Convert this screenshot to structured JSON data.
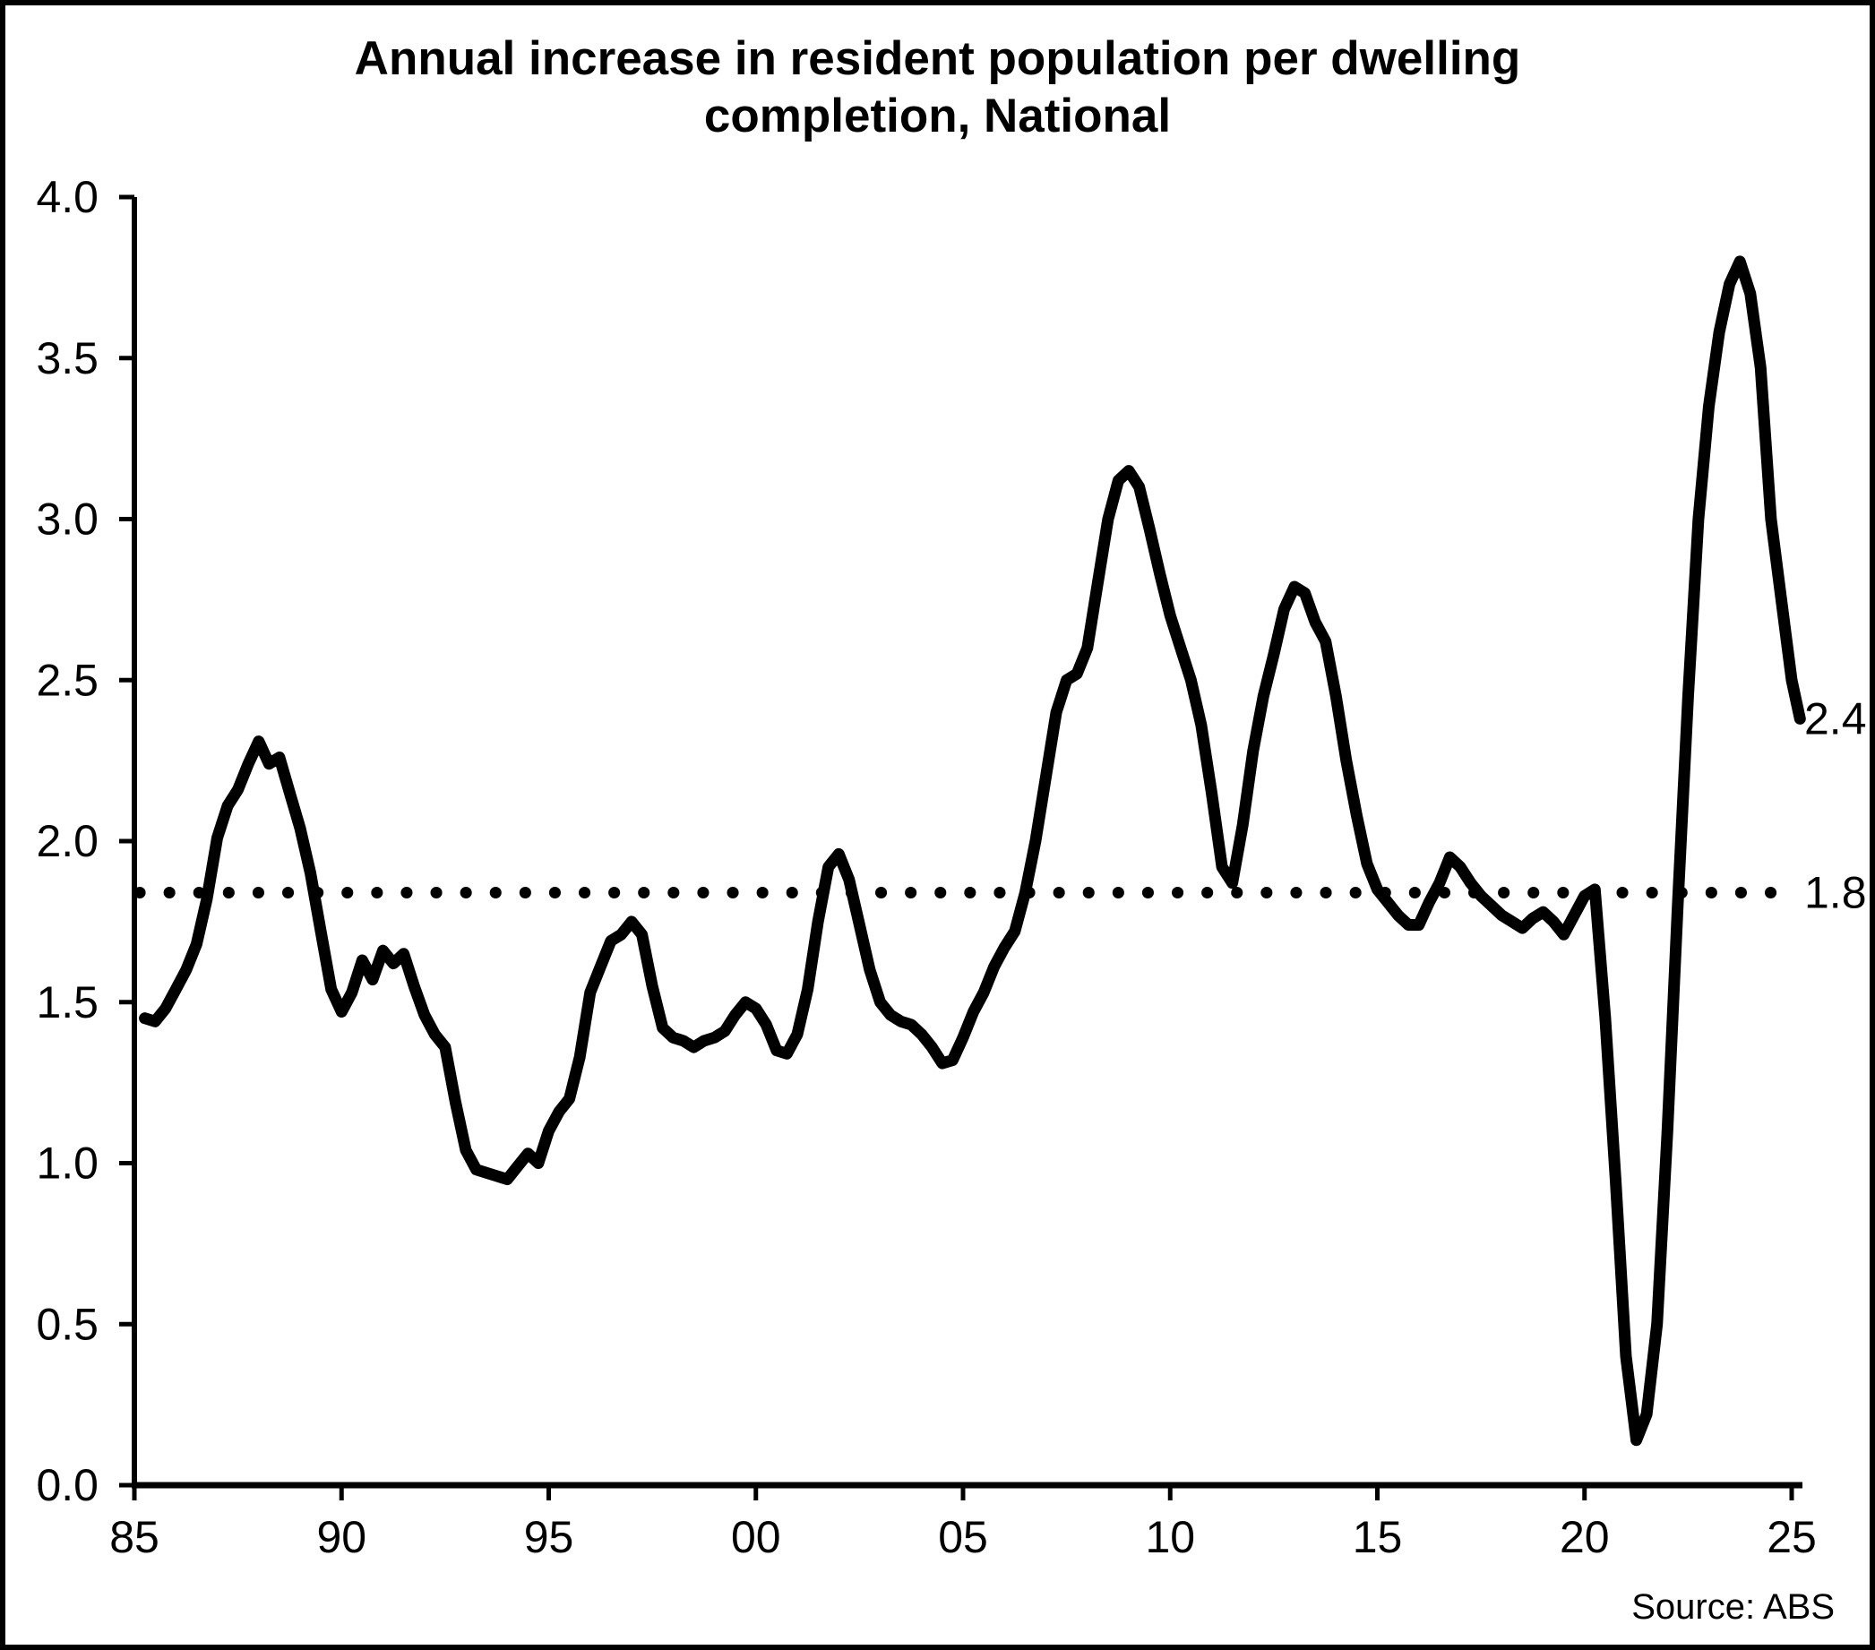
{
  "chart_data": {
    "type": "line",
    "title": "Annual increase in resident population per dwelling completion, National",
    "title_lines": [
      "Annual increase in resident population per dwelling",
      "completion, National"
    ],
    "source": "Source: ABS",
    "grid": false,
    "legend": false,
    "background": "#ffffff",
    "line_color": "#000000",
    "x_axis": {
      "range": [
        1985,
        2025.5
      ],
      "ticks": [
        {
          "label": "85",
          "year": 1985
        },
        {
          "label": "90",
          "year": 1990
        },
        {
          "label": "95",
          "year": 1995
        },
        {
          "label": "00",
          "year": 2000
        },
        {
          "label": "05",
          "year": 2005
        },
        {
          "label": "10",
          "year": 2010
        },
        {
          "label": "15",
          "year": 2015
        },
        {
          "label": "20",
          "year": 2020
        },
        {
          "label": "25",
          "year": 2025
        }
      ]
    },
    "y_axis": {
      "range": [
        0.0,
        4.0
      ],
      "ticks": [
        {
          "label": "0.0",
          "value": 0.0
        },
        {
          "label": "0.5",
          "value": 0.5
        },
        {
          "label": "1.0",
          "value": 1.0
        },
        {
          "label": "1.5",
          "value": 1.5
        },
        {
          "label": "2.0",
          "value": 2.0
        },
        {
          "label": "2.5",
          "value": 2.5
        },
        {
          "label": "3.0",
          "value": 3.0
        },
        {
          "label": "3.5",
          "value": 3.5
        },
        {
          "label": "4.0",
          "value": 4.0
        }
      ]
    },
    "reference_line": {
      "value": 1.84,
      "label": "1.8",
      "style": "dotted"
    },
    "series": {
      "name": "National",
      "end_label": "2.4",
      "points": [
        [
          1985.25,
          1.45
        ],
        [
          1985.5,
          1.44
        ],
        [
          1985.75,
          1.48
        ],
        [
          1986.0,
          1.54
        ],
        [
          1986.25,
          1.6
        ],
        [
          1986.5,
          1.68
        ],
        [
          1986.75,
          1.82
        ],
        [
          1987.0,
          2.01
        ],
        [
          1987.25,
          2.11
        ],
        [
          1987.5,
          2.16
        ],
        [
          1987.75,
          2.24
        ],
        [
          1988.0,
          2.31
        ],
        [
          1988.25,
          2.24
        ],
        [
          1988.5,
          2.26
        ],
        [
          1988.75,
          2.15
        ],
        [
          1989.0,
          2.04
        ],
        [
          1989.25,
          1.9
        ],
        [
          1989.5,
          1.72
        ],
        [
          1989.75,
          1.54
        ],
        [
          1990.0,
          1.47
        ],
        [
          1990.25,
          1.53
        ],
        [
          1990.5,
          1.63
        ],
        [
          1990.75,
          1.57
        ],
        [
          1991.0,
          1.66
        ],
        [
          1991.25,
          1.62
        ],
        [
          1991.5,
          1.65
        ],
        [
          1991.75,
          1.55
        ],
        [
          1992.0,
          1.46
        ],
        [
          1992.25,
          1.4
        ],
        [
          1992.5,
          1.36
        ],
        [
          1992.75,
          1.19
        ],
        [
          1993.0,
          1.04
        ],
        [
          1993.25,
          0.98
        ],
        [
          1993.5,
          0.97
        ],
        [
          1993.75,
          0.96
        ],
        [
          1994.0,
          0.95
        ],
        [
          1994.25,
          0.99
        ],
        [
          1994.5,
          1.03
        ],
        [
          1994.75,
          1.0
        ],
        [
          1995.0,
          1.1
        ],
        [
          1995.25,
          1.16
        ],
        [
          1995.5,
          1.2
        ],
        [
          1995.75,
          1.33
        ],
        [
          1996.0,
          1.53
        ],
        [
          1996.25,
          1.61
        ],
        [
          1996.5,
          1.69
        ],
        [
          1996.75,
          1.71
        ],
        [
          1997.0,
          1.75
        ],
        [
          1997.25,
          1.71
        ],
        [
          1997.5,
          1.55
        ],
        [
          1997.75,
          1.42
        ],
        [
          1998.0,
          1.39
        ],
        [
          1998.25,
          1.38
        ],
        [
          1998.5,
          1.36
        ],
        [
          1998.75,
          1.38
        ],
        [
          1999.0,
          1.39
        ],
        [
          1999.25,
          1.41
        ],
        [
          1999.5,
          1.46
        ],
        [
          1999.75,
          1.5
        ],
        [
          2000.0,
          1.48
        ],
        [
          2000.25,
          1.43
        ],
        [
          2000.5,
          1.35
        ],
        [
          2000.75,
          1.34
        ],
        [
          2001.0,
          1.4
        ],
        [
          2001.25,
          1.54
        ],
        [
          2001.5,
          1.75
        ],
        [
          2001.75,
          1.92
        ],
        [
          2002.0,
          1.96
        ],
        [
          2002.25,
          1.88
        ],
        [
          2002.5,
          1.74
        ],
        [
          2002.75,
          1.6
        ],
        [
          2003.0,
          1.5
        ],
        [
          2003.25,
          1.46
        ],
        [
          2003.5,
          1.44
        ],
        [
          2003.75,
          1.43
        ],
        [
          2004.0,
          1.4
        ],
        [
          2004.25,
          1.36
        ],
        [
          2004.5,
          1.31
        ],
        [
          2004.75,
          1.32
        ],
        [
          2005.0,
          1.39
        ],
        [
          2005.25,
          1.47
        ],
        [
          2005.5,
          1.53
        ],
        [
          2005.75,
          1.61
        ],
        [
          2006.0,
          1.67
        ],
        [
          2006.25,
          1.72
        ],
        [
          2006.5,
          1.84
        ],
        [
          2006.75,
          2.0
        ],
        [
          2007.0,
          2.2
        ],
        [
          2007.25,
          2.4
        ],
        [
          2007.5,
          2.5
        ],
        [
          2007.75,
          2.52
        ],
        [
          2008.0,
          2.6
        ],
        [
          2008.25,
          2.8
        ],
        [
          2008.5,
          3.0
        ],
        [
          2008.75,
          3.12
        ],
        [
          2009.0,
          3.15
        ],
        [
          2009.25,
          3.1
        ],
        [
          2009.5,
          2.97
        ],
        [
          2009.75,
          2.83
        ],
        [
          2010.0,
          2.7
        ],
        [
          2010.25,
          2.6
        ],
        [
          2010.5,
          2.5
        ],
        [
          2010.75,
          2.36
        ],
        [
          2011.0,
          2.15
        ],
        [
          2011.25,
          1.92
        ],
        [
          2011.5,
          1.87
        ],
        [
          2011.75,
          2.05
        ],
        [
          2012.0,
          2.28
        ],
        [
          2012.25,
          2.45
        ],
        [
          2012.5,
          2.58
        ],
        [
          2012.75,
          2.72
        ],
        [
          2013.0,
          2.79
        ],
        [
          2013.25,
          2.77
        ],
        [
          2013.5,
          2.68
        ],
        [
          2013.75,
          2.62
        ],
        [
          2014.0,
          2.45
        ],
        [
          2014.25,
          2.25
        ],
        [
          2014.5,
          2.08
        ],
        [
          2014.75,
          1.93
        ],
        [
          2015.0,
          1.85
        ],
        [
          2015.25,
          1.81
        ],
        [
          2015.5,
          1.77
        ],
        [
          2015.75,
          1.74
        ],
        [
          2016.0,
          1.74
        ],
        [
          2016.25,
          1.81
        ],
        [
          2016.5,
          1.87
        ],
        [
          2016.75,
          1.95
        ],
        [
          2017.0,
          1.92
        ],
        [
          2017.25,
          1.87
        ],
        [
          2017.5,
          1.83
        ],
        [
          2017.75,
          1.8
        ],
        [
          2018.0,
          1.77
        ],
        [
          2018.25,
          1.75
        ],
        [
          2018.5,
          1.73
        ],
        [
          2018.75,
          1.76
        ],
        [
          2019.0,
          1.78
        ],
        [
          2019.25,
          1.75
        ],
        [
          2019.5,
          1.71
        ],
        [
          2019.75,
          1.77
        ],
        [
          2020.0,
          1.83
        ],
        [
          2020.25,
          1.85
        ],
        [
          2020.5,
          1.45
        ],
        [
          2020.75,
          0.95
        ],
        [
          2021.0,
          0.4
        ],
        [
          2021.25,
          0.14
        ],
        [
          2021.5,
          0.22
        ],
        [
          2021.75,
          0.5
        ],
        [
          2022.0,
          1.1
        ],
        [
          2022.25,
          1.8
        ],
        [
          2022.5,
          2.45
        ],
        [
          2022.75,
          3.0
        ],
        [
          2023.0,
          3.35
        ],
        [
          2023.25,
          3.58
        ],
        [
          2023.5,
          3.73
        ],
        [
          2023.75,
          3.8
        ],
        [
          2024.0,
          3.7
        ],
        [
          2024.25,
          3.47
        ],
        [
          2024.5,
          3.0
        ],
        [
          2024.75,
          2.75
        ],
        [
          2025.0,
          2.5
        ],
        [
          2025.2,
          2.38
        ]
      ]
    }
  }
}
